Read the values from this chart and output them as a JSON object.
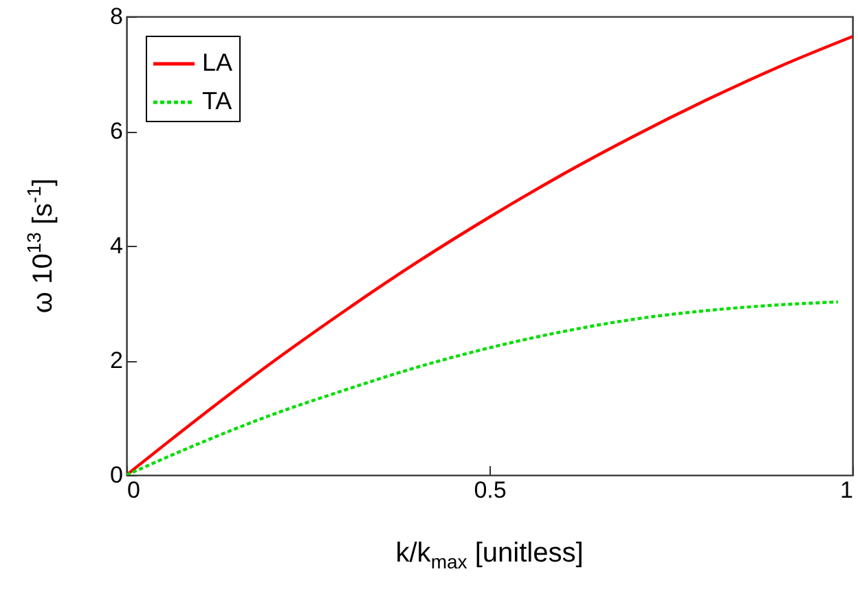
{
  "chart_data": {
    "type": "line",
    "xlabel": "k/k$_{max}$ [unitless]",
    "ylabel": "ω 10$^{13}$ [s$^{-1}$]",
    "xlim": [
      0,
      1
    ],
    "xticks": [
      0,
      0.5,
      1
    ],
    "ylim": [
      0,
      8
    ],
    "yticks": [
      0,
      2,
      4,
      6,
      8
    ],
    "grid": false,
    "legend": "top left",
    "marker": "none",
    "series": [
      {
        "name": "LA",
        "color": "#ff0000",
        "line_style": "solid",
        "x": [
          0,
          0.1,
          0.2,
          0.3,
          0.4,
          0.5,
          0.6,
          0.7,
          0.8,
          0.9,
          1
        ],
        "values": [
          0,
          1.0,
          1.96,
          2.86,
          3.71,
          4.5,
          5.24,
          5.92,
          6.55,
          7.13,
          7.65
        ]
      },
      {
        "name": "TA",
        "color": "#00dd00",
        "line_style": "dotted",
        "x": [
          0,
          0.1,
          0.2,
          0.3,
          0.4,
          0.5,
          0.6,
          0.7,
          0.8,
          0.9,
          0.98
        ],
        "values": [
          0,
          0.55,
          1.05,
          1.48,
          1.88,
          2.22,
          2.5,
          2.72,
          2.87,
          2.97,
          3.02
        ]
      }
    ]
  }
}
